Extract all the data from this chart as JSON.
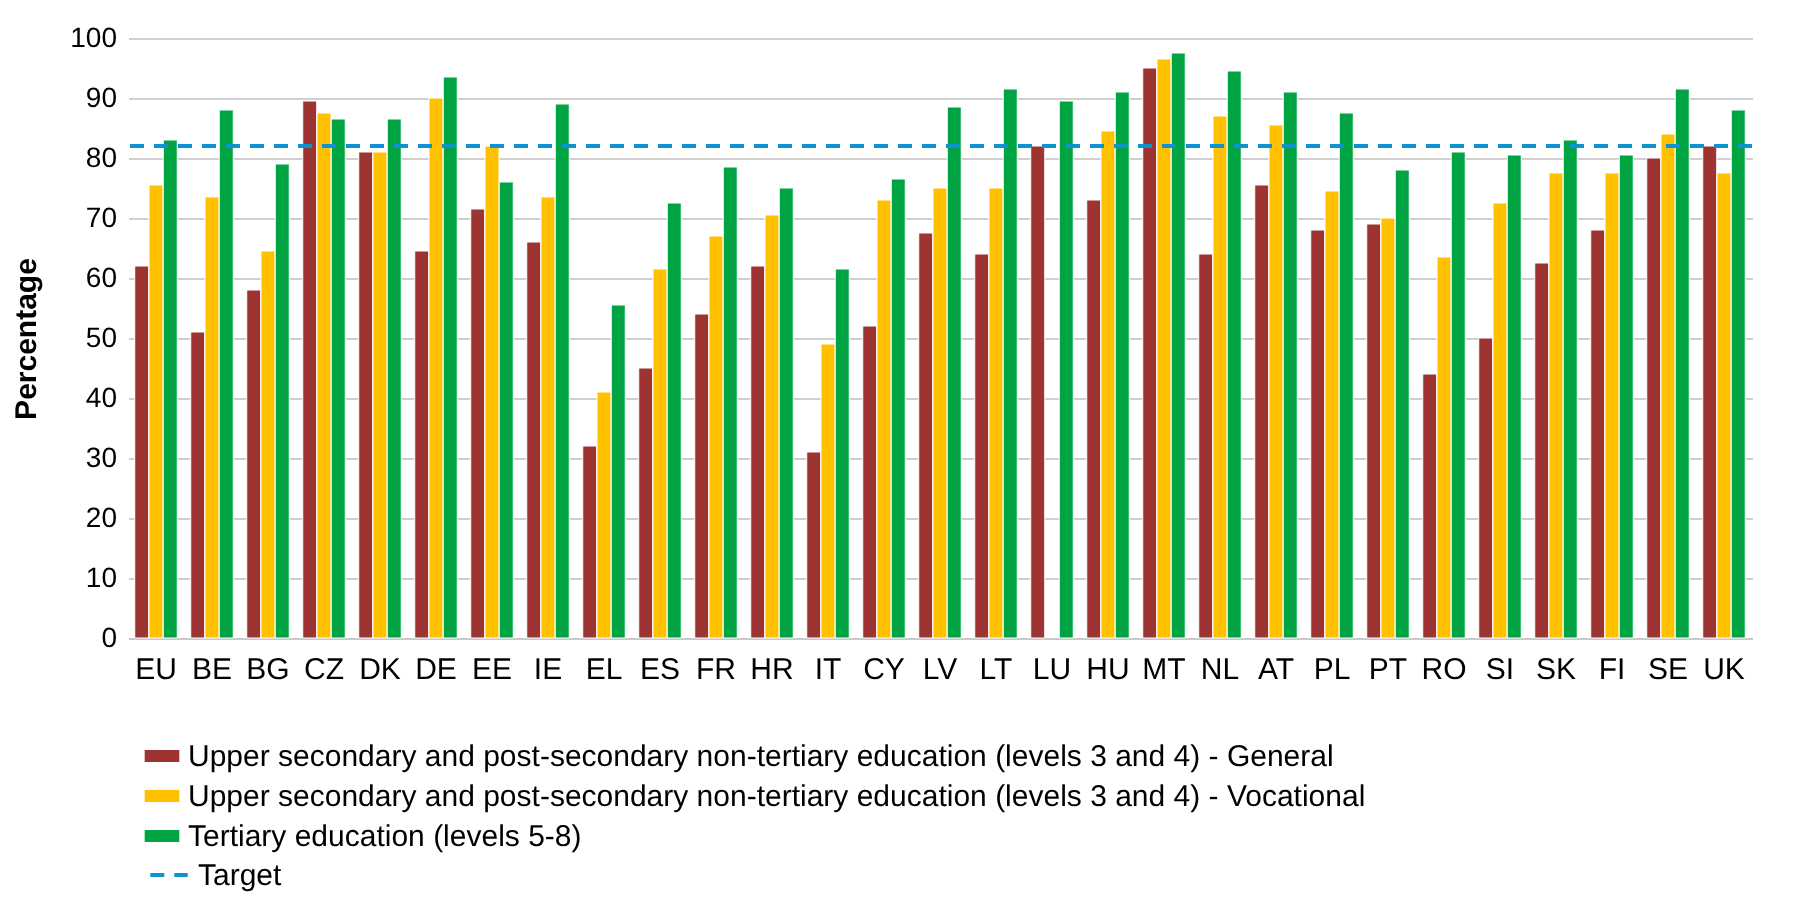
{
  "chart_data": {
    "type": "bar",
    "categories": [
      "EU",
      "BE",
      "BG",
      "CZ",
      "DK",
      "DE",
      "EE",
      "IE",
      "EL",
      "ES",
      "FR",
      "HR",
      "IT",
      "CY",
      "LV",
      "LT",
      "LU",
      "HU",
      "MT",
      "NL",
      "AT",
      "PL",
      "PT",
      "RO",
      "SI",
      "SK",
      "FI",
      "SE",
      "UK"
    ],
    "series": [
      {
        "name": "Upper secondary and post-secondary non-tertiary education (levels 3 and 4) - General",
        "color": "#9e3431",
        "values": [
          62,
          51,
          58,
          89.5,
          81,
          64.5,
          71.5,
          66,
          32,
          45,
          54,
          62,
          31,
          52,
          67.5,
          64,
          82,
          73,
          95,
          64,
          75.5,
          68,
          69,
          44,
          50,
          62.5,
          68,
          80,
          82
        ]
      },
      {
        "name": "Upper secondary and post-secondary non-tertiary education (levels 3 and 4) - Vocational",
        "color": "#ffc000",
        "values": [
          75.5,
          73.5,
          64.5,
          87.5,
          81,
          90,
          82,
          73.5,
          41,
          61.5,
          67,
          70.5,
          49,
          73,
          75,
          75,
          null,
          84.5,
          96.5,
          87,
          85.5,
          74.5,
          70,
          63.5,
          72.5,
          77.5,
          77.5,
          84,
          77.5
        ]
      },
      {
        "name": "Tertiary education (levels 5-8)",
        "color": "#00a443",
        "values": [
          83,
          88,
          79,
          86.5,
          86.5,
          93.5,
          76,
          89,
          55.5,
          72.5,
          78.5,
          75,
          61.5,
          76.5,
          88.5,
          91.5,
          89.5,
          91,
          97.5,
          94.5,
          91,
          87.5,
          78,
          81,
          80.5,
          83,
          80.5,
          91.5,
          88
        ]
      }
    ],
    "ylabel": "Percentage",
    "ylim": [
      0,
      100
    ],
    "yticks": [
      0,
      10,
      20,
      30,
      40,
      50,
      60,
      70,
      80,
      90,
      100
    ],
    "grid": "y",
    "legend": "bottom left",
    "ref_lines": [
      {
        "axis": "y",
        "value": 82,
        "label": "Target",
        "color": "#0e93d0",
        "line_style": "dashed"
      }
    ]
  }
}
